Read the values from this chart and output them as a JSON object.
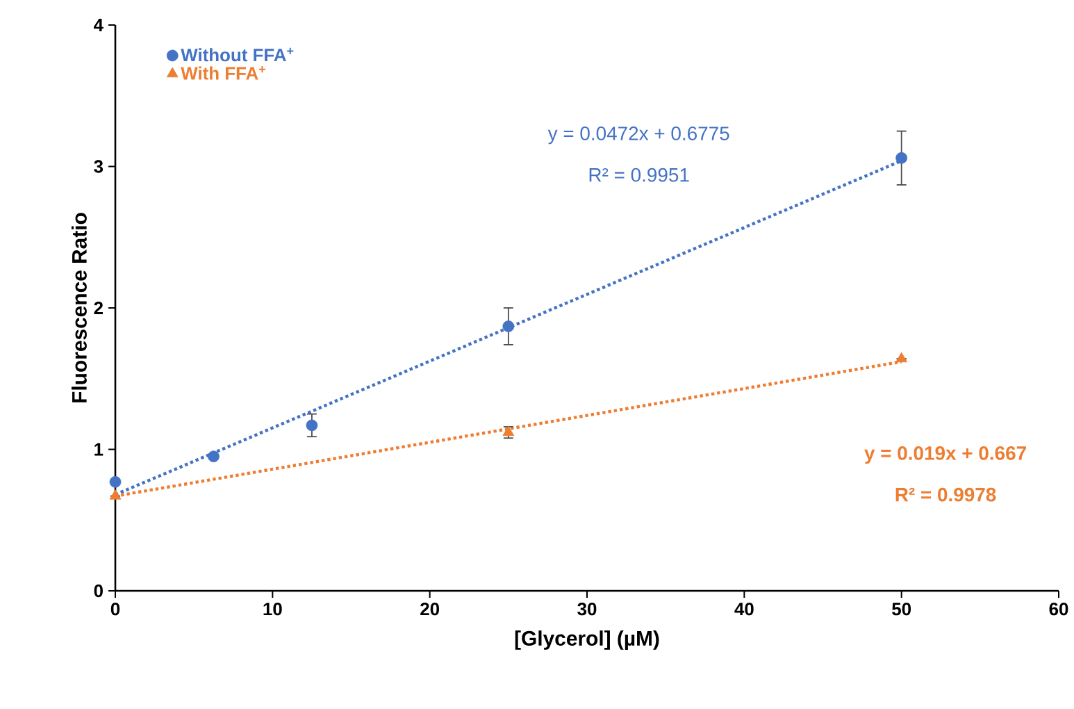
{
  "chart_data": {
    "type": "scatter",
    "xlabel": "[Glycerol] (µM)",
    "ylabel": "Fluorescence Ratio",
    "xlim": [
      0,
      60
    ],
    "xticks": [
      0,
      10,
      20,
      30,
      40,
      50,
      60
    ],
    "ylim": [
      0,
      4
    ],
    "yticks": [
      0,
      1,
      2,
      3,
      4
    ],
    "grid": false,
    "legend": "top left",
    "series": [
      {
        "name": "Without  FFA$^{+}$",
        "color": "#4472c4",
        "marker": "circle",
        "x": [
          0,
          6.25,
          12.5,
          25,
          50
        ],
        "values": [
          0.77,
          0.95,
          1.17,
          1.87,
          3.06
        ],
        "errors": [
          null,
          null,
          0.08,
          0.13,
          0.19
        ]
      },
      {
        "name": "With FFA$^{+}$",
        "color": "#ed7d31",
        "marker": "triangle",
        "x": [
          0,
          25,
          50
        ],
        "values": [
          0.67,
          1.12,
          1.64
        ],
        "errors": [
          null,
          0.04,
          null
        ]
      },
      {
        "type": "line",
        "color": "#4472c4",
        "marker": "none",
        "line_style": "dotted",
        "x": [
          0,
          50
        ],
        "values": [
          0.68,
          3.04
        ]
      },
      {
        "type": "line",
        "color": "#ed7d31",
        "marker": "none",
        "line_style": "dotted",
        "x": [
          0,
          50
        ],
        "values": [
          0.67,
          1.62
        ]
      }
    ],
    "annotations": [
      "y = 0.0472x + 0.6775",
      "R² = 0.9951",
      "**y = 0.019x + 0.667**",
      "**R² = 0.9978**"
    ]
  }
}
